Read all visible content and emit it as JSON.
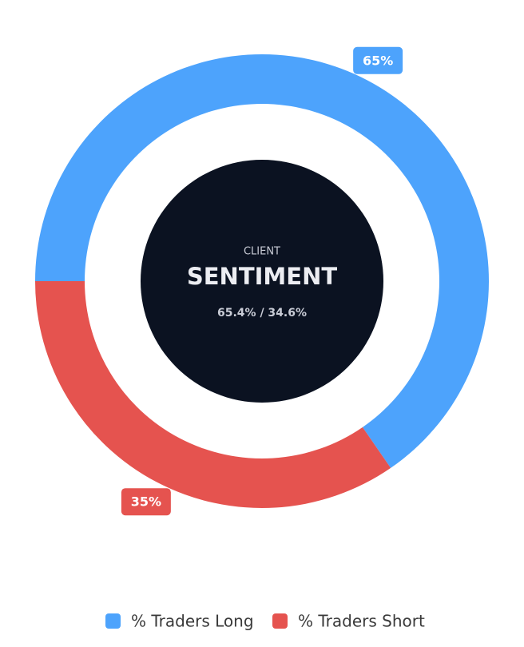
{
  "chart_data": {
    "type": "donut",
    "center_label": "CLIENT",
    "center_title": "SENTIMENT",
    "center_detail": "65.4% / 34.6%",
    "categories": [
      "% Traders Long",
      "% Traders Short"
    ],
    "values": [
      65.4,
      34.6
    ],
    "value_labels": [
      "65%",
      "35%"
    ],
    "colors": [
      "#4da3fc",
      "#e5534f"
    ],
    "legend": "bottom"
  }
}
